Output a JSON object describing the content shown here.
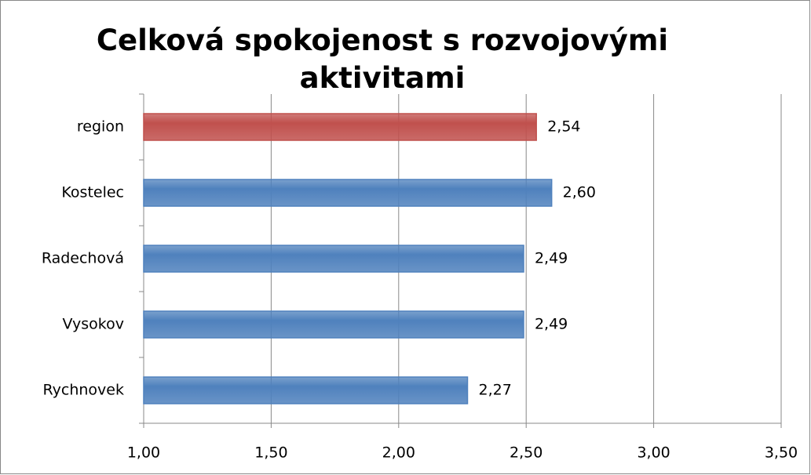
{
  "chart_data": {
    "type": "bar",
    "orientation": "horizontal",
    "title": "Celková spokojenost s rozvojovými aktivitami",
    "categories": [
      "region",
      "Kostelec",
      "Radechová",
      "Vysokov",
      "Rychnovek"
    ],
    "values": [
      2.54,
      2.6,
      2.49,
      2.49,
      2.27
    ],
    "value_labels": [
      "2,54",
      "2,60",
      "2,49",
      "2,49",
      "2,27"
    ],
    "colors": [
      "#c0504d",
      "#4f81bd",
      "#4f81bd",
      "#4f81bd",
      "#4f81bd"
    ],
    "xlim": [
      1,
      3.5
    ],
    "xticks": [
      {
        "value": 1,
        "label": "1,00"
      },
      {
        "value": 1.5,
        "label": "1,50"
      },
      {
        "value": 2,
        "label": "2,00"
      },
      {
        "value": 2.5,
        "label": "2,50"
      },
      {
        "value": 3,
        "label": "3,00"
      },
      {
        "value": 3.5,
        "label": "3,50"
      }
    ],
    "grid": true
  }
}
